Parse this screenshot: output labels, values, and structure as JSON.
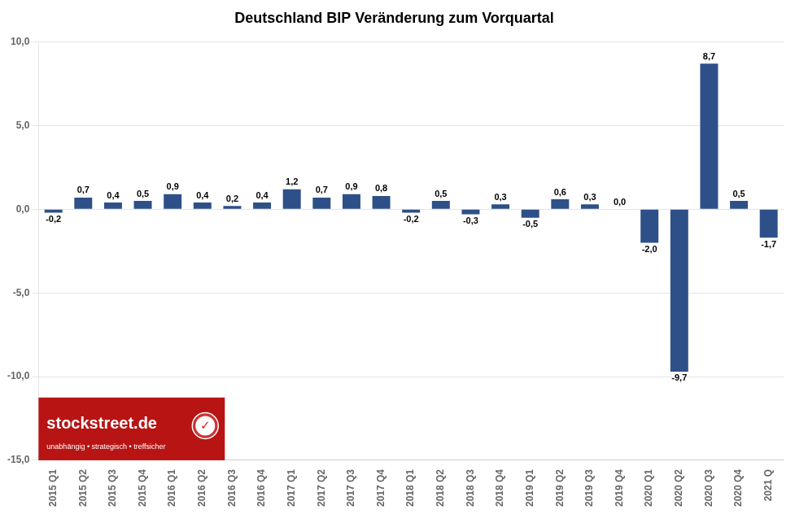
{
  "chart_data": {
    "type": "bar",
    "title": "Deutschland BIP Veränderung zum Vorquartal",
    "categories": [
      "2015 Q1",
      "2015 Q2",
      "2015 Q3",
      "2015 Q4",
      "2016 Q1",
      "2016 Q2",
      "2016 Q3",
      "2016 Q4",
      "2017 Q1",
      "2017 Q2",
      "2017 Q3",
      "2017 Q4",
      "2018 Q1",
      "2018 Q2",
      "2018 Q3",
      "2018 Q4",
      "2019 Q1",
      "2019 Q2",
      "2019 Q3",
      "2019 Q4",
      "2020 Q1",
      "2020 Q2",
      "2020 Q3",
      "2020 Q4",
      "2021 Q"
    ],
    "values": [
      -0.2,
      0.7,
      0.4,
      0.5,
      0.9,
      0.4,
      0.2,
      0.4,
      1.2,
      0.7,
      0.9,
      0.8,
      -0.2,
      0.5,
      -0.3,
      0.3,
      -0.5,
      0.6,
      0.3,
      0.0,
      -2.0,
      -9.7,
      8.7,
      0.5,
      -1.7
    ],
    "value_labels": [
      "-0,2",
      "0,7",
      "0,4",
      "0,5",
      "0,9",
      "0,4",
      "0,2",
      "0,4",
      "1,2",
      "0,7",
      "0,9",
      "0,8",
      "-0,2",
      "0,5",
      "-0,3",
      "0,3",
      "-0,5",
      "0,6",
      "0,3",
      "0,0",
      "-2,0",
      "-9,7",
      "8,7",
      "0,5",
      "-1,7"
    ],
    "data_labels": true,
    "color": "#2E5088",
    "ylim": [
      -15,
      10
    ],
    "yticks": [
      {
        "value": -15,
        "label": "-15,0"
      },
      {
        "value": -10,
        "label": "-10,0"
      },
      {
        "value": -5,
        "label": "-5,0"
      },
      {
        "value": 0,
        "label": "0,0"
      },
      {
        "value": 5,
        "label": "5,0"
      },
      {
        "value": 10,
        "label": "10,0"
      }
    ],
    "grid": true,
    "annotations": [
      "stockstreet.de",
      "unabhängig • strategisch • treffsicher",
      "✓"
    ]
  }
}
